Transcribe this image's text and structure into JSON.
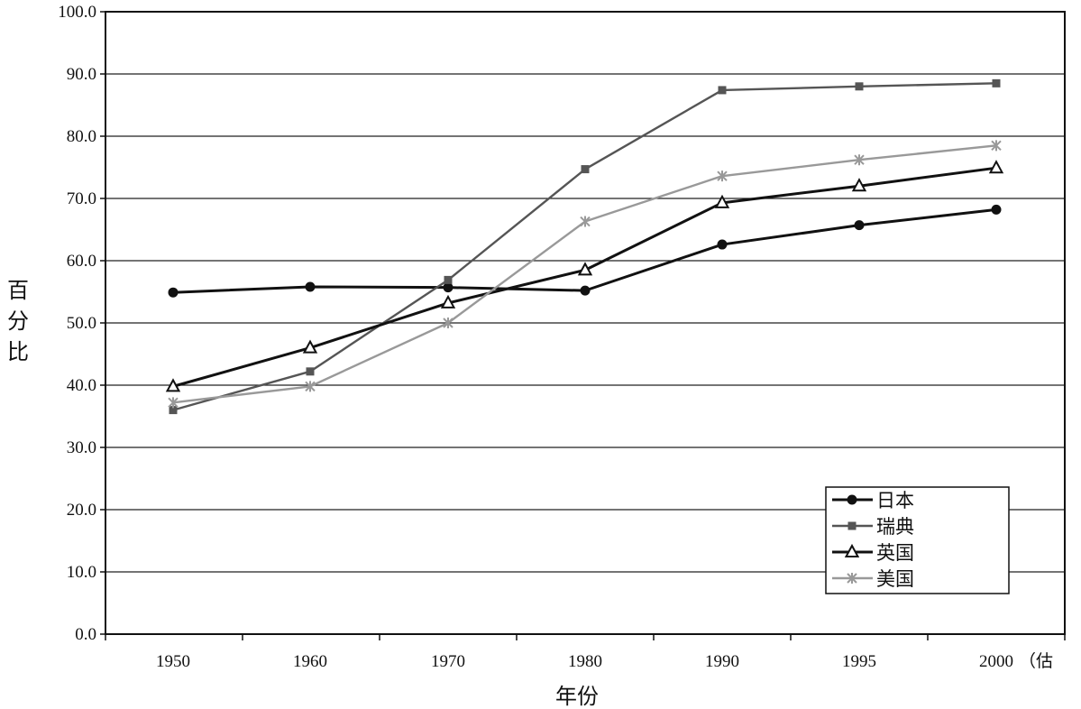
{
  "chart_data": {
    "type": "line",
    "title": "",
    "xlabel": "年份",
    "ylabel": "百分比",
    "categories": [
      "1950",
      "1960",
      "1970",
      "1980",
      "1990",
      "1995",
      "2000"
    ],
    "x_suffix": "（估",
    "ylim": [
      0,
      100
    ],
    "y_ticks": [
      "0.0",
      "10.0",
      "20.0",
      "30.0",
      "40.0",
      "50.0",
      "60.0",
      "70.0",
      "80.0",
      "90.0",
      "100.0"
    ],
    "grid": true,
    "legend_position": "bottom-right",
    "series": [
      {
        "name": "日本",
        "marker": "circle",
        "color": "#111111",
        "values": [
          54.9,
          55.8,
          55.7,
          55.2,
          62.6,
          65.7,
          68.2
        ]
      },
      {
        "name": "瑞典",
        "marker": "square",
        "color": "#555555",
        "values": [
          36.0,
          42.2,
          56.9,
          74.7,
          87.4,
          88.0,
          88.5
        ]
      },
      {
        "name": "英国",
        "marker": "triangle",
        "color": "#111111",
        "values": [
          39.8,
          46.0,
          53.2,
          58.5,
          69.3,
          72.0,
          74.9
        ]
      },
      {
        "name": "美国",
        "marker": "x",
        "color": "#999999",
        "values": [
          37.2,
          39.8,
          50.0,
          66.3,
          73.6,
          76.2,
          78.5
        ]
      }
    ]
  }
}
